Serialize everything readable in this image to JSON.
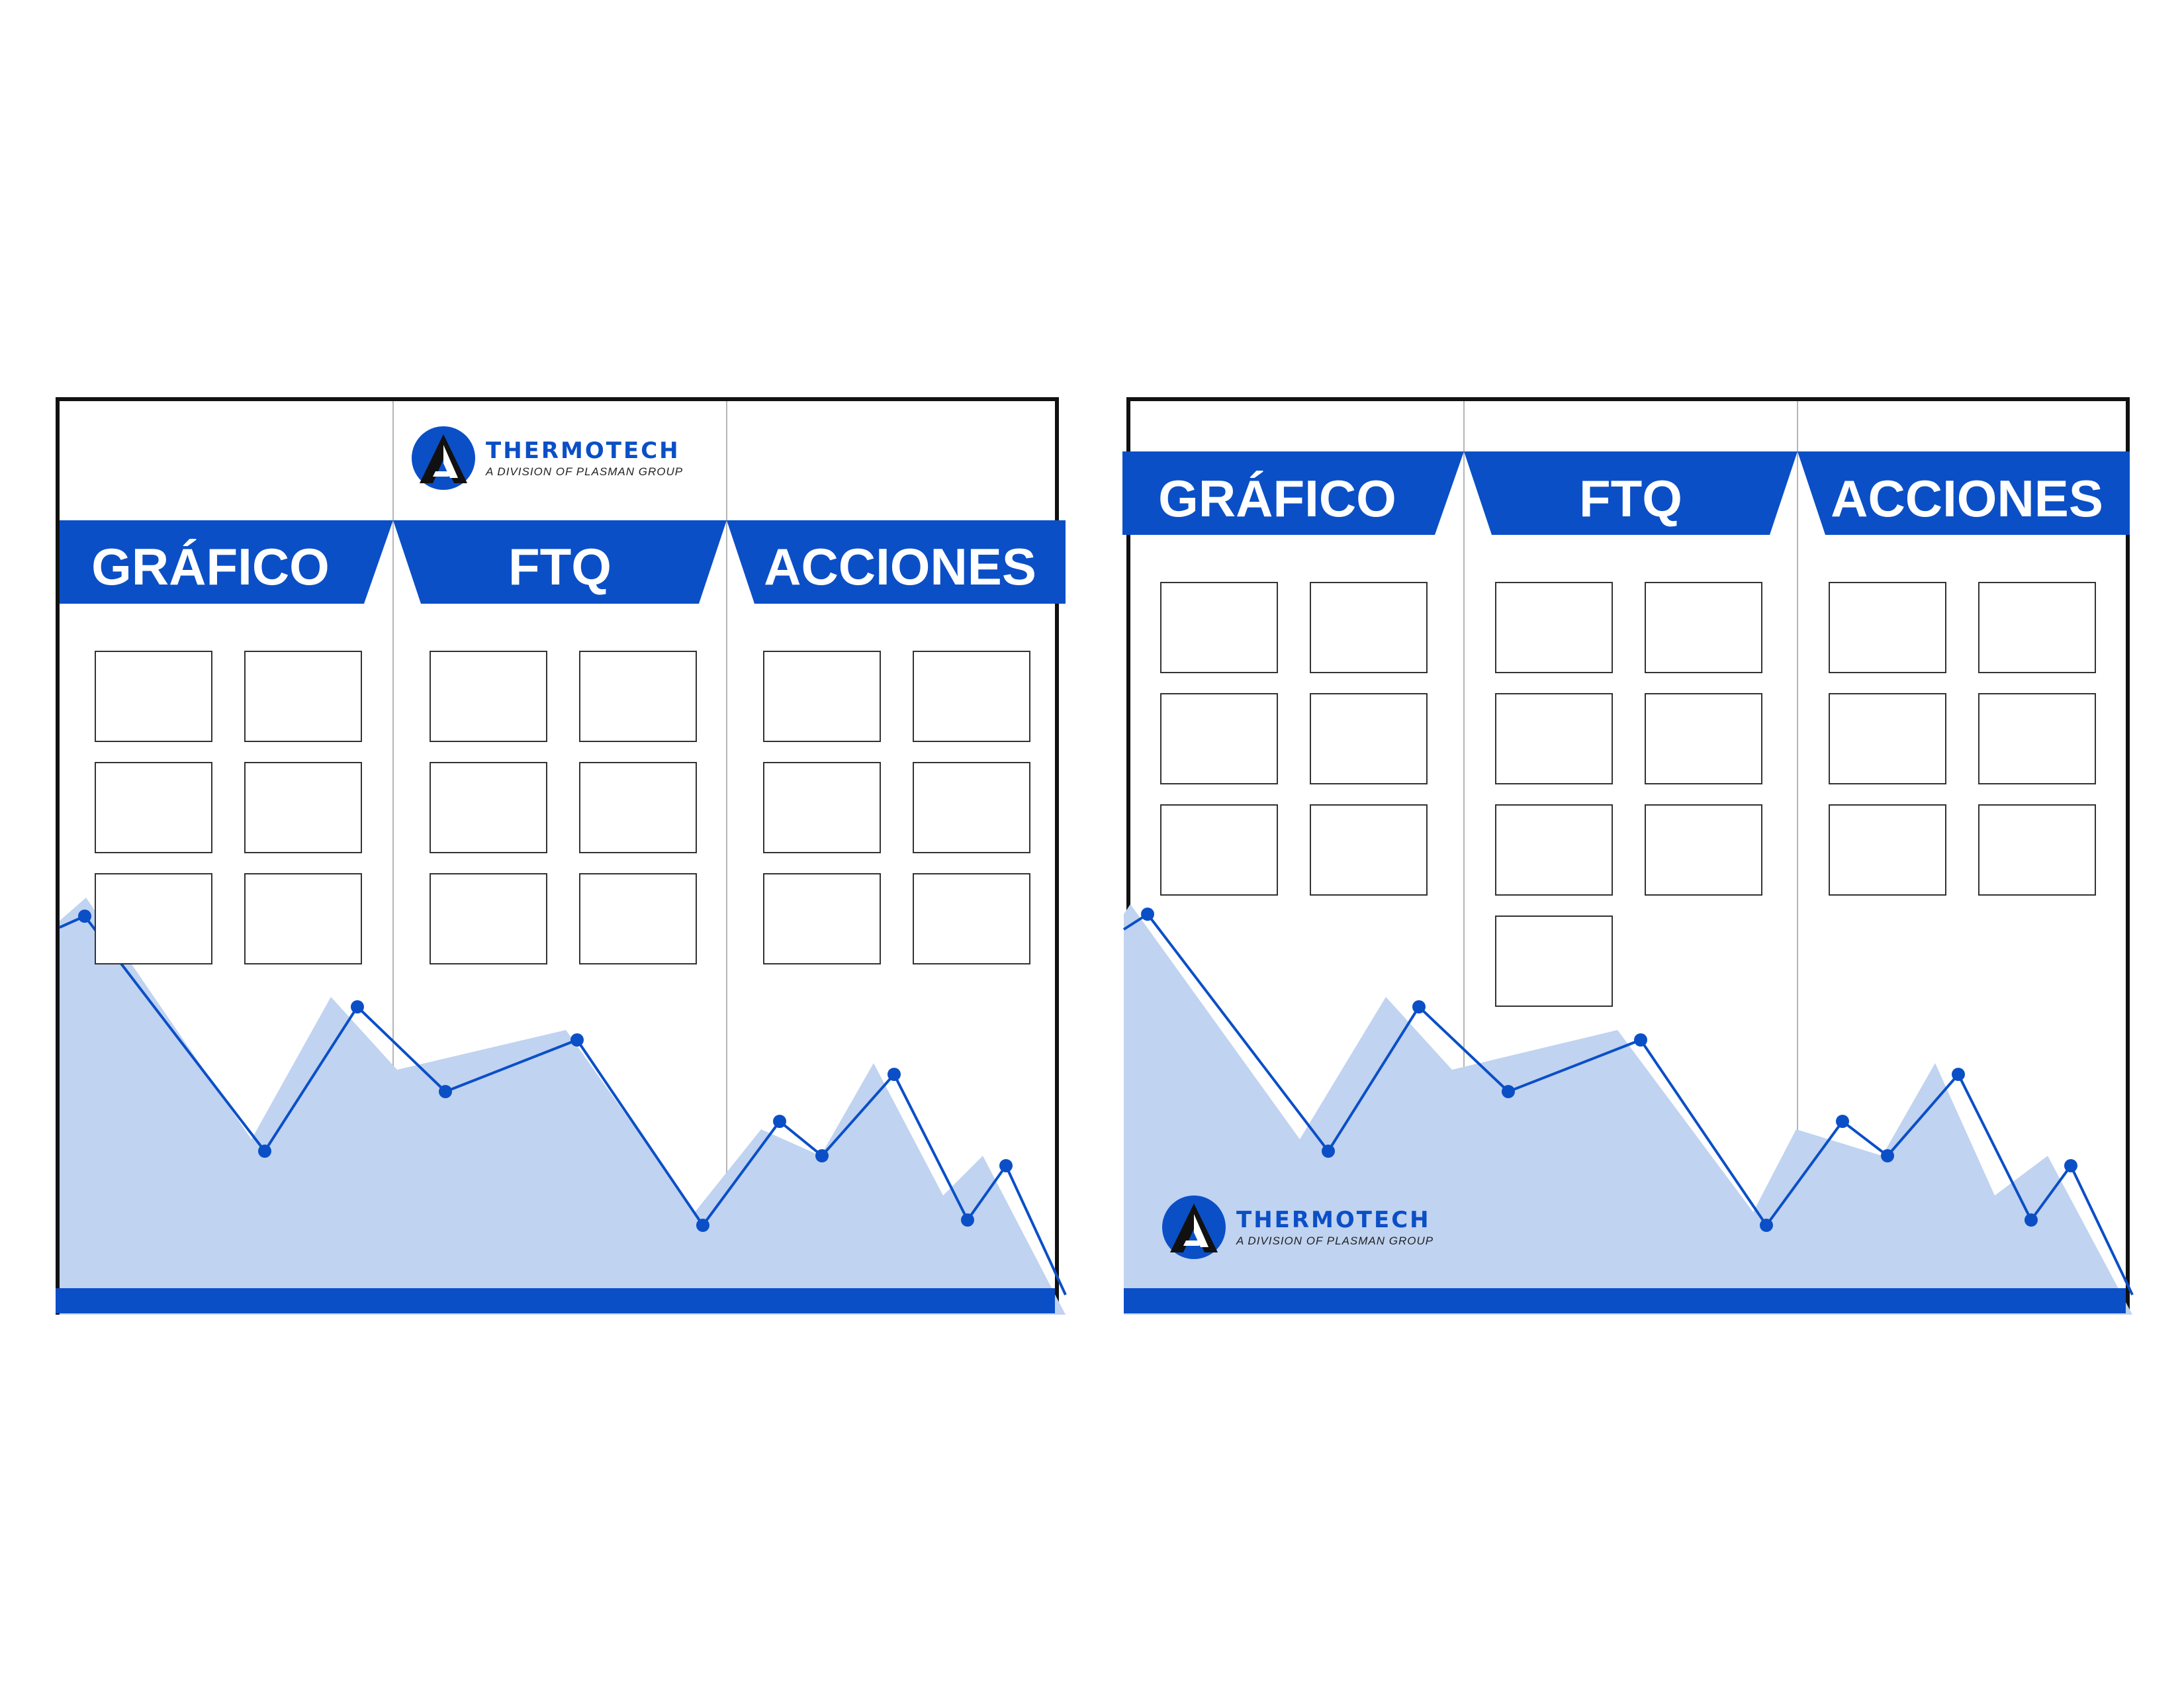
{
  "colors": {
    "brand_blue": "#0b4fc7",
    "area_fill": "#c0d3f0",
    "frame": "#111111",
    "divider": "#b5b5b5",
    "slot_border": "#333333"
  },
  "logo": {
    "brand": "THERMOTECH",
    "tagline": "A DIVISION OF PLASMAN GROUP",
    "mark_icon": "thermotech-a-mark-icon"
  },
  "boards": [
    {
      "id": "board-a",
      "logo_position": "top-center",
      "sections": [
        {
          "label": "GRÁFICO",
          "slot_count": 6
        },
        {
          "label": "FTQ",
          "slot_count": 6
        },
        {
          "label": "ACCIONES",
          "slot_count": 6
        }
      ]
    },
    {
      "id": "board-b",
      "logo_position": "bottom-left",
      "sections": [
        {
          "label": "GRÁFICO",
          "slot_count": 6
        },
        {
          "label": "FTQ",
          "slot_count": 7
        },
        {
          "label": "ACCIONES",
          "slot_count": 6
        }
      ]
    }
  ]
}
